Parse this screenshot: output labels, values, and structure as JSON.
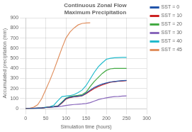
{
  "chart_data": {
    "type": "line",
    "title": "Continuous Zonal Flow\nMaximum Precipitation",
    "xlabel": "Simulation time (hours)",
    "ylabel": "Accumulated precipitation (mm)",
    "xlim": [
      0,
      300
    ],
    "ylim": [
      0,
      900
    ],
    "xticks": [
      0,
      50,
      100,
      150,
      200,
      250,
      300
    ],
    "yticks": [
      0,
      100,
      200,
      300,
      400,
      500,
      600,
      700,
      800,
      900
    ],
    "grid": true,
    "legend": "right",
    "series": [
      {
        "name": "SST = 0",
        "color": "#2255aa",
        "x": [
          0,
          10,
          20,
          30,
          40,
          50,
          60,
          70,
          80,
          90,
          100,
          110,
          120,
          130,
          140,
          150,
          160,
          170,
          180,
          190,
          200,
          210,
          220,
          230,
          240,
          250
        ],
        "values": [
          0,
          2,
          4,
          6,
          8,
          12,
          16,
          20,
          25,
          60,
          100,
          115,
          120,
          125,
          130,
          155,
          185,
          210,
          230,
          245,
          255,
          265,
          270,
          275,
          278,
          280
        ]
      },
      {
        "name": "SST = 10",
        "color": "#cc2222",
        "x": [
          0,
          10,
          20,
          30,
          40,
          50,
          60,
          70,
          80,
          90,
          100,
          110,
          120,
          130,
          140,
          150,
          160,
          170,
          180,
          190,
          200,
          210,
          220,
          230,
          240,
          250
        ],
        "values": [
          0,
          2,
          4,
          6,
          8,
          12,
          16,
          20,
          25,
          55,
          95,
          110,
          118,
          122,
          128,
          150,
          175,
          200,
          220,
          235,
          250,
          262,
          268,
          272,
          275,
          278
        ]
      },
      {
        "name": "SST = 20",
        "color": "#44aa44",
        "x": [
          0,
          10,
          20,
          30,
          40,
          50,
          60,
          70,
          80,
          90,
          100,
          110,
          120,
          130,
          140,
          150,
          160,
          170,
          180,
          190,
          200,
          210,
          220,
          230,
          240,
          250
        ],
        "values": [
          0,
          2,
          4,
          6,
          8,
          13,
          17,
          22,
          28,
          65,
          105,
          120,
          128,
          132,
          140,
          165,
          220,
          270,
          310,
          350,
          380,
          395,
          400,
          400,
          400,
          400
        ]
      },
      {
        "name": "SST = 30",
        "color": "#8866bb",
        "x": [
          0,
          10,
          20,
          30,
          40,
          50,
          60,
          70,
          80,
          90,
          100,
          110,
          120,
          130,
          140,
          150,
          160,
          170,
          180,
          190,
          200,
          210,
          220,
          230,
          240,
          250
        ],
        "values": [
          0,
          2,
          4,
          6,
          8,
          12,
          14,
          18,
          20,
          25,
          32,
          38,
          42,
          45,
          48,
          52,
          60,
          75,
          90,
          100,
          108,
          115,
          120,
          122,
          125,
          127
        ]
      },
      {
        "name": "SST = 40",
        "color": "#22bbcc",
        "x": [
          0,
          10,
          20,
          30,
          40,
          50,
          60,
          70,
          80,
          90,
          100,
          110,
          120,
          130,
          140,
          150,
          160,
          170,
          180,
          190,
          200,
          210,
          220,
          230,
          240,
          250
        ],
        "values": [
          0,
          2,
          4,
          6,
          10,
          15,
          20,
          35,
          80,
          120,
          125,
          130,
          140,
          160,
          185,
          230,
          295,
          360,
          415,
          455,
          490,
          500,
          505,
          507,
          508,
          508
        ]
      },
      {
        "name": "SST = 45",
        "color": "#e09060",
        "x": [
          0,
          10,
          20,
          30,
          40,
          50,
          60,
          70,
          80,
          90,
          100,
          110,
          120,
          130,
          140,
          150,
          160
        ],
        "values": [
          0,
          5,
          15,
          40,
          100,
          190,
          280,
          380,
          490,
          600,
          700,
          760,
          800,
          830,
          845,
          850,
          852
        ]
      }
    ]
  }
}
